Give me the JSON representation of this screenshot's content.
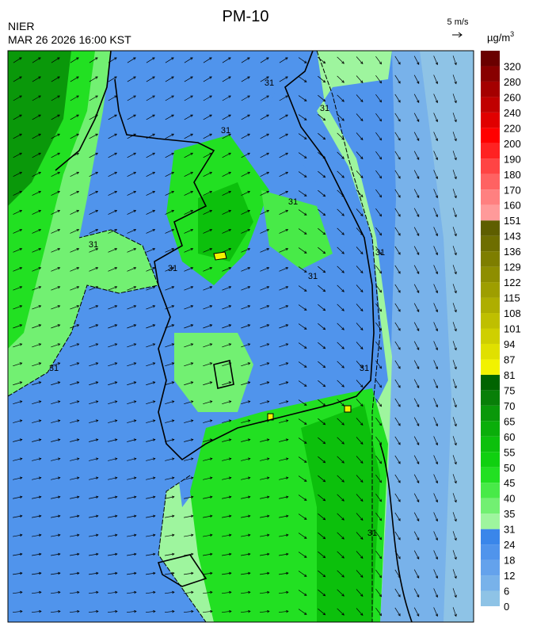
{
  "header": {
    "title": "PM-10",
    "agency": "NIER",
    "timestamp": "MAR 26 2026 16:00 KST"
  },
  "wind_legend": {
    "label": "5 m/s"
  },
  "colorbar": {
    "unit": "µg/m",
    "unit_superscript": "3",
    "ticks": [
      0,
      6,
      12,
      18,
      24,
      31,
      35,
      40,
      45,
      50,
      55,
      60,
      65,
      70,
      75,
      81,
      87,
      94,
      101,
      108,
      115,
      122,
      129,
      136,
      143,
      151,
      160,
      170,
      180,
      190,
      200,
      220,
      240,
      260,
      280,
      320
    ],
    "colors": [
      "#8ec3e6",
      "#78b2ea",
      "#64a2ec",
      "#5094ec",
      "#3a86ea",
      "#9ef59e",
      "#72f072",
      "#48ea48",
      "#22e022",
      "#10d010",
      "#0cc00c",
      "#0aae0a",
      "#0a980a",
      "#087f08",
      "#006400",
      "#f2f200",
      "#e0e000",
      "#cfcf00",
      "#bfbf00",
      "#aeae00",
      "#9e9e00",
      "#8e8e00",
      "#7e7e00",
      "#6e6e00",
      "#5e5e00",
      "#ff9a9a",
      "#ff8080",
      "#ff6262",
      "#ff4444",
      "#ff2222",
      "#ff0000",
      "#e00000",
      "#c00000",
      "#a40000",
      "#880000",
      "#6a0000"
    ]
  },
  "contour_labels": [
    "31",
    "31",
    "31",
    "31",
    "31",
    "31",
    "31",
    "31",
    "31",
    "31",
    "31"
  ]
}
